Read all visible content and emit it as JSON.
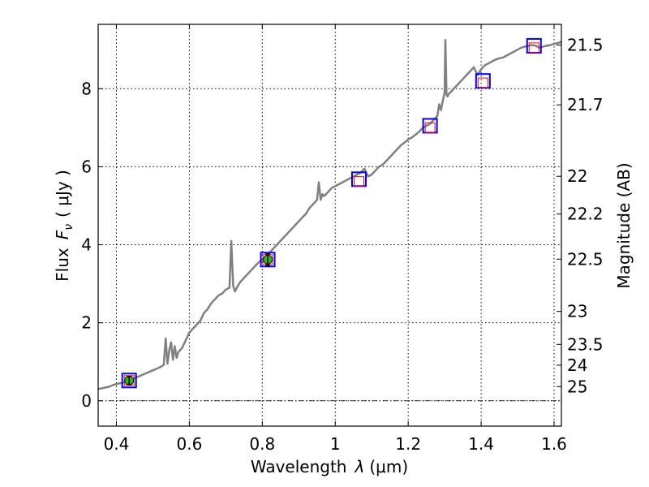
{
  "chart_data": {
    "type": "line",
    "title": "",
    "xlabel": "Wavelength",
    "xlabel_symbol": "λ",
    "xlabel_unit": "(μm)",
    "ylabel": "Flux",
    "ylabel_symbol": "F",
    "ylabel_subscript": "ν",
    "ylabel_unit": "( μJy )",
    "y2label": "Magnitude (AB)",
    "xlim": [
      0.35,
      1.62
    ],
    "ylim": [
      -0.65,
      9.65
    ],
    "grid": true,
    "x_ticks": [
      0.4,
      0.6,
      0.8,
      1.0,
      1.2,
      1.4,
      1.6
    ],
    "x_tick_labels": [
      "0.4",
      "0.6",
      "0.8",
      "1",
      "1.2",
      "1.4",
      "1.6"
    ],
    "y_ticks": [
      0,
      2,
      4,
      6,
      8
    ],
    "y_tick_labels": [
      "0",
      "2",
      "4",
      "6",
      "8"
    ],
    "mag_ticks": [
      21.5,
      21.7,
      22,
      22.2,
      22.5,
      23,
      23.5,
      24,
      25
    ],
    "mag_tick_labels": [
      "21.5",
      "21.7",
      "22",
      "22.2",
      "22.5",
      "23",
      "23.5",
      "24",
      "25"
    ],
    "colors": {
      "spectrum": "#808080",
      "model_box": "#0000ff",
      "synthetic_box": "#ff0000",
      "observed_point": "#22bb22",
      "zero_line": "#000000"
    },
    "series": [
      {
        "name": "model-spectrum",
        "style": "line",
        "x": [
          0.35,
          0.36,
          0.37,
          0.38,
          0.39,
          0.4,
          0.41,
          0.42,
          0.43,
          0.44,
          0.45,
          0.46,
          0.47,
          0.48,
          0.49,
          0.5,
          0.51,
          0.52,
          0.53,
          0.535,
          0.54,
          0.545,
          0.55,
          0.555,
          0.56,
          0.565,
          0.57,
          0.58,
          0.59,
          0.6,
          0.61,
          0.62,
          0.63,
          0.64,
          0.65,
          0.66,
          0.67,
          0.68,
          0.69,
          0.7,
          0.71,
          0.715,
          0.72,
          0.725,
          0.73,
          0.74,
          0.75,
          0.76,
          0.77,
          0.78,
          0.79,
          0.8,
          0.81,
          0.82,
          0.83,
          0.84,
          0.85,
          0.86,
          0.87,
          0.88,
          0.89,
          0.9,
          0.91,
          0.92,
          0.93,
          0.94,
          0.95,
          0.955,
          0.96,
          0.965,
          0.97,
          0.98,
          0.99,
          1.0,
          1.01,
          1.02,
          1.03,
          1.04,
          1.05,
          1.06,
          1.07,
          1.08,
          1.09,
          1.1,
          1.11,
          1.12,
          1.13,
          1.14,
          1.15,
          1.16,
          1.17,
          1.18,
          1.19,
          1.2,
          1.21,
          1.22,
          1.23,
          1.24,
          1.25,
          1.26,
          1.27,
          1.28,
          1.285,
          1.29,
          1.295,
          1.3,
          1.302,
          1.305,
          1.308,
          1.31,
          1.32,
          1.33,
          1.34,
          1.35,
          1.36,
          1.37,
          1.38,
          1.39,
          1.4,
          1.41,
          1.42,
          1.43,
          1.44,
          1.45,
          1.46,
          1.47,
          1.48,
          1.49,
          1.5,
          1.51,
          1.52,
          1.53,
          1.54,
          1.55,
          1.56,
          1.57,
          1.58,
          1.59,
          1.6,
          1.61,
          1.62
        ],
        "y": [
          0.3,
          0.32,
          0.34,
          0.36,
          0.4,
          0.43,
          0.45,
          0.47,
          0.5,
          0.55,
          0.58,
          0.62,
          0.66,
          0.7,
          0.74,
          0.78,
          0.82,
          0.86,
          0.92,
          1.6,
          0.95,
          1.3,
          1.5,
          1.05,
          1.4,
          1.1,
          1.25,
          1.35,
          1.55,
          1.75,
          1.85,
          1.95,
          2.05,
          2.25,
          2.35,
          2.5,
          2.6,
          2.7,
          2.75,
          2.85,
          2.9,
          4.1,
          2.95,
          2.8,
          2.9,
          3.05,
          3.15,
          3.25,
          3.35,
          3.45,
          3.55,
          3.62,
          3.7,
          3.8,
          3.9,
          4.0,
          4.1,
          4.2,
          4.3,
          4.4,
          4.5,
          4.6,
          4.7,
          4.8,
          4.95,
          5.05,
          5.15,
          5.6,
          5.15,
          5.3,
          5.25,
          5.35,
          5.45,
          5.5,
          5.55,
          5.6,
          5.65,
          5.7,
          5.75,
          5.8,
          5.85,
          5.95,
          5.75,
          5.8,
          5.9,
          6.0,
          6.05,
          6.15,
          6.25,
          6.35,
          6.45,
          6.55,
          6.62,
          6.7,
          6.75,
          6.82,
          6.9,
          7.0,
          7.05,
          7.1,
          7.2,
          7.3,
          7.6,
          7.45,
          7.7,
          7.9,
          9.25,
          7.85,
          7.8,
          7.85,
          7.95,
          8.05,
          8.15,
          8.25,
          8.35,
          8.45,
          8.55,
          8.35,
          8.5,
          8.6,
          8.65,
          8.7,
          8.75,
          8.78,
          8.8,
          8.85,
          8.9,
          8.95,
          9.0,
          9.05,
          9.08,
          9.1,
          9.12,
          9.1,
          9.05,
          9.08,
          9.1,
          9.12,
          9.15,
          9.17,
          9.2
        ]
      },
      {
        "name": "model-photometry",
        "style": "blue-square",
        "x": [
          0.435,
          0.815,
          1.065,
          1.26,
          1.405,
          1.545
        ],
        "y": [
          0.52,
          3.62,
          5.68,
          7.05,
          8.2,
          9.1
        ]
      },
      {
        "name": "synthetic-photometry",
        "style": "red-square",
        "x": [
          0.435,
          0.815,
          1.065,
          1.26,
          1.405,
          1.545
        ],
        "y": [
          0.52,
          3.62,
          5.62,
          7.0,
          8.15,
          9.05
        ]
      },
      {
        "name": "observed-photometry",
        "style": "green-circle-errorbar",
        "x": [
          0.435,
          0.815
        ],
        "y": [
          0.52,
          3.62
        ],
        "yerr": [
          0.1,
          0.15
        ]
      }
    ]
  }
}
